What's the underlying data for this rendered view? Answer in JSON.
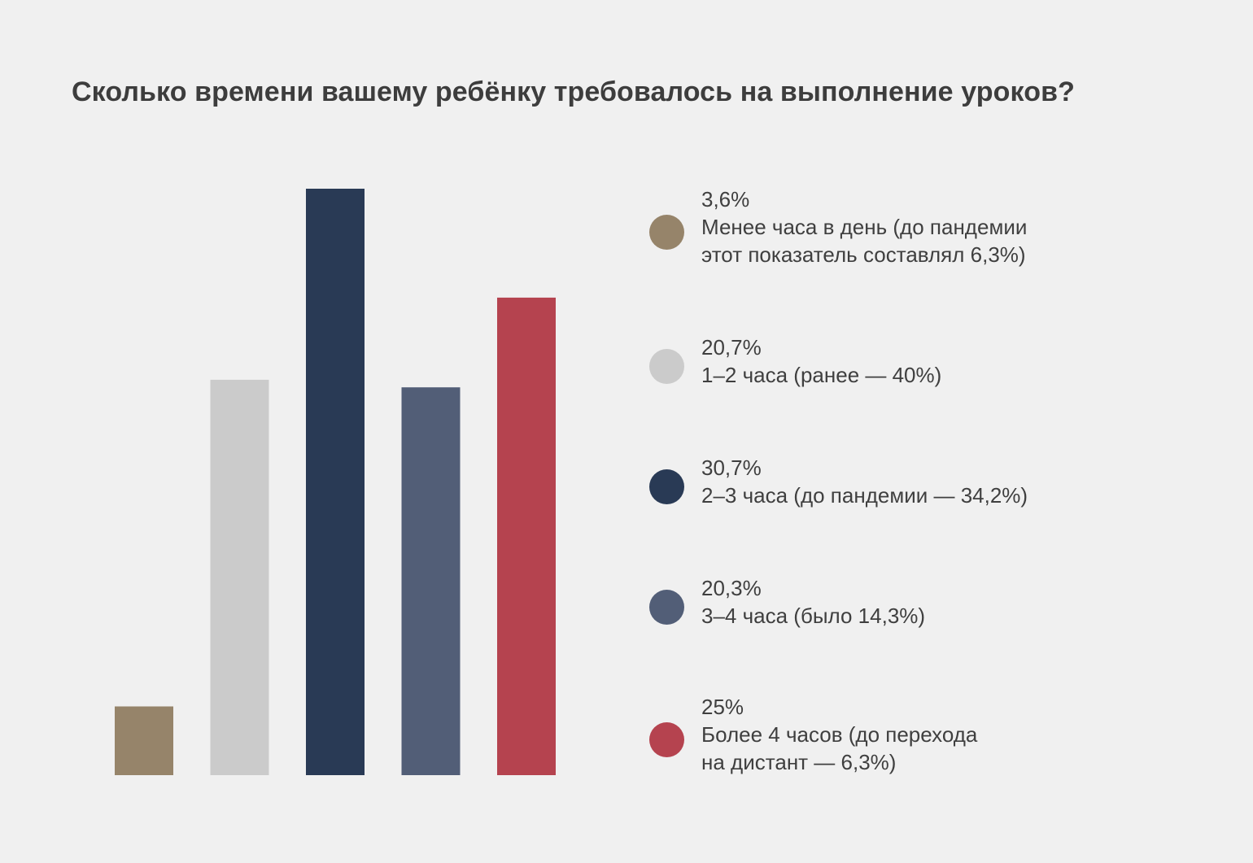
{
  "title": "Сколько времени вашему ребёнку требовалось на выполнение уроков?",
  "chart_data": {
    "type": "bar",
    "title": "Сколько времени вашему ребёнку требовалось на выполнение уроков?",
    "xlabel": "",
    "ylabel": "",
    "ylim": [
      0,
      30.7
    ],
    "grid": false,
    "legend_placement": "right",
    "categories": [
      "Менее часа в день (до пандемии этот показатель составлял 6,3%)",
      "1–2 часа (ранее — 40%)",
      "2–3 часа (до пандемии — 34,2%)",
      "3–4 часа (было 14,3%)",
      "Более 4 часов (до перехода на дистант — 6,3%)"
    ],
    "values": [
      3.6,
      20.7,
      30.7,
      20.3,
      25
    ],
    "colors": [
      "#96846a",
      "#cbcbcb",
      "#293a55",
      "#525e77",
      "#b5434f"
    ]
  },
  "legend": [
    {
      "value": "3,6%",
      "lines": [
        "Менее часа в день (до пандемии",
        "этот показатель составлял 6,3%)"
      ],
      "color": "#96846a"
    },
    {
      "value": "20,7%",
      "lines": [
        "1–2 часа (ранее — 40%)"
      ],
      "color": "#cbcbcb"
    },
    {
      "value": "30,7%",
      "lines": [
        "2–3 часа (до пандемии — 34,2%)"
      ],
      "color": "#293a55"
    },
    {
      "value": "20,3%",
      "lines": [
        "3–4 часа (было 14,3%)"
      ],
      "color": "#525e77"
    },
    {
      "value": "25%",
      "lines": [
        "Более 4 часов (до перехода",
        "на дистант — 6,3%)"
      ],
      "color": "#b5434f"
    }
  ]
}
